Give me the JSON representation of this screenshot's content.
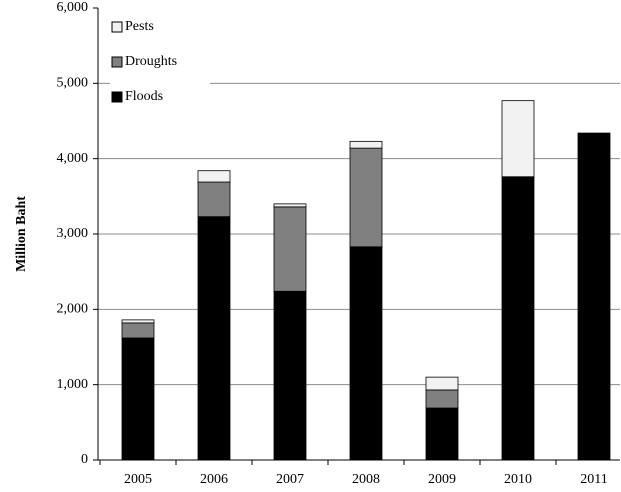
{
  "chart_data": {
    "type": "stacked-bar",
    "y_label": "Million Baht",
    "categories": [
      "2005",
      "2006",
      "2007",
      "2008",
      "2009",
      "2010",
      "2011"
    ],
    "series": [
      {
        "name": "Floods",
        "color": "#000000",
        "values": [
          1620,
          3230,
          2240,
          2830,
          690,
          3760,
          4340
        ]
      },
      {
        "name": "Droughts",
        "color": "#808080",
        "values": [
          200,
          460,
          1120,
          1310,
          240,
          0,
          0
        ]
      },
      {
        "name": "Pests",
        "color": "#f2f2f2",
        "values": [
          40,
          150,
          40,
          90,
          170,
          1010,
          0
        ]
      }
    ],
    "ylim": [
      0,
      6000
    ],
    "yticks": [
      0,
      {
        "value": 1000,
        "label": "1,000"
      },
      {
        "value": 2000,
        "label": "2,000"
      },
      {
        "value": 3000,
        "label": "3,000"
      },
      {
        "value": 4000,
        "label": "4,000"
      },
      {
        "value": 5000,
        "label": "5,000"
      },
      {
        "value": 6000,
        "label": "6,000"
      }
    ],
    "grid": true,
    "legend": "upper-left"
  }
}
